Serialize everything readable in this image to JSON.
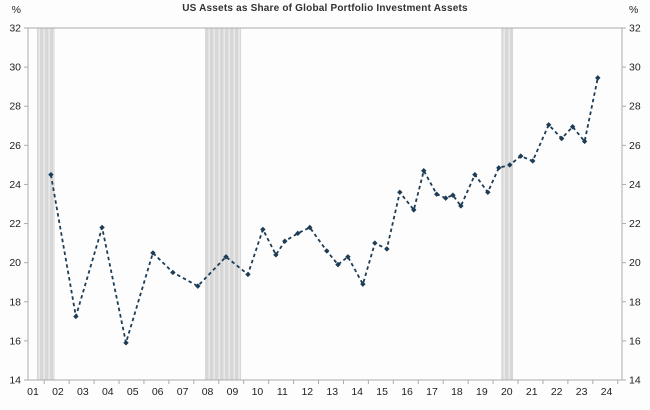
{
  "chart_data": {
    "type": "line",
    "title": "US Assets as Share of Global Portfolio Investment Assets",
    "unit_label": "%",
    "line_style": "dashed",
    "line_color": "#1d3c55",
    "marker": "diamond",
    "band_color": "#d7d7d7",
    "band_stripe_color": "#e9e9e9",
    "axis_color": "#ababab",
    "tick_text_color": "#1f1f1f",
    "ylim": [
      14,
      32
    ],
    "y_ticks": [
      14,
      16,
      18,
      20,
      22,
      24,
      26,
      28,
      30,
      32
    ],
    "x_domain": [
      2000.8,
      2024.62
    ],
    "x_tick_years": [
      2001,
      2002,
      2003,
      2004,
      2005,
      2006,
      2007,
      2008,
      2009,
      2010,
      2011,
      2012,
      2013,
      2014,
      2015,
      2016,
      2017,
      2018,
      2019,
      2020,
      2021,
      2022,
      2023,
      2024
    ],
    "x_tick_labels": [
      "01",
      "02",
      "03",
      "04",
      "05",
      "06",
      "07",
      "08",
      "09",
      "10",
      "11",
      "12",
      "13",
      "14",
      "15",
      "16",
      "17",
      "18",
      "19",
      "20",
      "21",
      "22",
      "23",
      "24"
    ],
    "recession_bands": [
      [
        2001.16,
        2001.88
      ],
      [
        2007.9,
        2009.34
      ],
      [
        2019.78,
        2020.25
      ]
    ],
    "series": [
      {
        "name": "US assets as share of global portfolio investment assets (%)",
        "points": [
          [
            2001.72,
            24.5
          ],
          [
            2002.72,
            17.25
          ],
          [
            2003.77,
            21.8
          ],
          [
            2004.73,
            15.9
          ],
          [
            2005.81,
            20.5
          ],
          [
            2006.61,
            19.5
          ],
          [
            2007.61,
            18.8
          ],
          [
            2008.74,
            20.3
          ],
          [
            2009.62,
            19.4
          ],
          [
            2010.22,
            21.7
          ],
          [
            2010.74,
            20.4
          ],
          [
            2011.1,
            21.1
          ],
          [
            2011.62,
            21.5
          ],
          [
            2012.1,
            21.8
          ],
          [
            2012.78,
            20.6
          ],
          [
            2013.23,
            19.9
          ],
          [
            2013.63,
            20.3
          ],
          [
            2014.23,
            18.9
          ],
          [
            2014.71,
            21.0
          ],
          [
            2015.19,
            20.7
          ],
          [
            2015.71,
            23.6
          ],
          [
            2016.27,
            22.7
          ],
          [
            2016.67,
            24.7
          ],
          [
            2017.19,
            23.5
          ],
          [
            2017.55,
            23.3
          ],
          [
            2017.84,
            23.45
          ],
          [
            2018.16,
            22.9
          ],
          [
            2018.72,
            24.5
          ],
          [
            2019.24,
            23.6
          ],
          [
            2019.68,
            24.85
          ],
          [
            2020.12,
            25.0
          ],
          [
            2020.56,
            25.45
          ],
          [
            2021.04,
            25.2
          ],
          [
            2021.68,
            27.05
          ],
          [
            2022.2,
            26.35
          ],
          [
            2022.64,
            26.95
          ],
          [
            2023.12,
            26.2
          ],
          [
            2023.65,
            29.45
          ]
        ]
      }
    ],
    "legend": "none",
    "grid": "off"
  }
}
